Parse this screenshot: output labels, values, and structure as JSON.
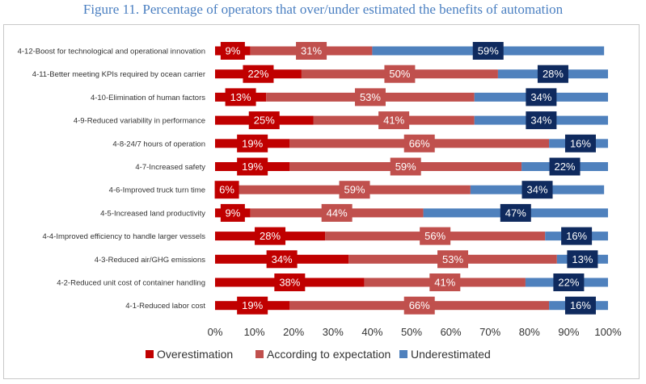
{
  "title": "Figure 11. Percentage of operators that over/under estimated the benefits of automation",
  "colors": {
    "overestimation": "#c00000",
    "according": "#c0504d",
    "underestimated": "#4f81bd",
    "label_box_over": "#c00000",
    "label_box_according": "#c0504d",
    "label_box_under": "#0f2a5e",
    "title": "#4a7fc1"
  },
  "chart_data": {
    "type": "bar",
    "orientation": "horizontal",
    "stacked": "percent",
    "title": "Figure 11. Percentage of operators that over/under estimated the benefits of automation",
    "xlabel": "",
    "ylabel": "",
    "xlim": [
      0,
      100
    ],
    "x_ticks": [
      "0%",
      "10%",
      "20%",
      "30%",
      "40%",
      "50%",
      "60%",
      "70%",
      "80%",
      "90%",
      "100%"
    ],
    "legend_position": "bottom",
    "grid": false,
    "categories": [
      "4-12-Boost for technological and operational innovation",
      "4-11-Better meeting KPIs required by ocean carrier",
      "4-10-Elimination of human factors",
      "4-9-Reduced variability in performance",
      "4-8-24/7 hours of operation",
      "4-7-Increased safety",
      "4-6-Improved truck turn time",
      "4-5-Increased land productivity",
      "4-4-Improved efficiency to handle larger vessels",
      "4-3-Reduced air/GHG emissions",
      "4-2-Reduced unit cost of container handling",
      "4-1-Reduced labor cost"
    ],
    "series": [
      {
        "name": "Overestimation",
        "values": [
          9,
          22,
          13,
          25,
          19,
          19,
          6,
          9,
          28,
          34,
          38,
          19
        ],
        "labels": [
          "9%",
          "22%",
          "13%",
          "25%",
          "19%",
          "19%",
          "6%",
          "9%",
          "28%",
          "34%",
          "38%",
          "19%"
        ]
      },
      {
        "name": "According to expectation",
        "values": [
          31,
          50,
          53,
          41,
          66,
          59,
          59,
          44,
          56,
          53,
          41,
          66
        ],
        "labels": [
          "31%",
          "50%",
          "53%",
          "41%",
          "66%",
          "59%",
          "59%",
          "44%",
          "56%",
          "53%",
          "41%",
          "66%"
        ]
      },
      {
        "name": "Underestimated",
        "values": [
          59,
          28,
          34,
          34,
          16,
          22,
          34,
          47,
          16,
          13,
          22,
          16
        ],
        "labels": [
          "59%",
          "28%",
          "34%",
          "34%",
          "16%",
          "22%",
          "34%",
          "47%",
          "16%",
          "13%",
          "22%",
          "16%"
        ]
      }
    ]
  }
}
